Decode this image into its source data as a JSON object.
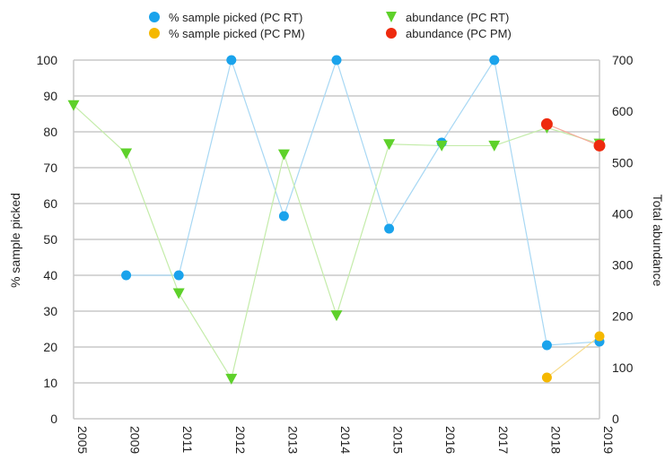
{
  "chart_data": {
    "type": "line",
    "categories": [
      "2005",
      "2009",
      "2011",
      "2012",
      "2013",
      "2014",
      "2015",
      "2016",
      "2017",
      "2018",
      "2019"
    ],
    "y_left": {
      "label": "% sample picked",
      "ylim": [
        0,
        100
      ],
      "ticks": [
        "0",
        "10",
        "20",
        "30",
        "40",
        "50",
        "60",
        "70",
        "80",
        "90",
        "100"
      ]
    },
    "y_right": {
      "label": "Total abundance",
      "ylim": [
        0,
        700
      ],
      "ticks": [
        "0",
        "100",
        "200",
        "300",
        "400",
        "500",
        "600",
        "700"
      ]
    },
    "grid": true,
    "legend_position": "top",
    "series": [
      {
        "name": "% sample picked (PC RT)",
        "axis": "left",
        "marker": "circle",
        "color": "#1aa3ec",
        "line_color": "#a8d8f4",
        "values": [
          null,
          40,
          40,
          100,
          56.5,
          100,
          53,
          77,
          100,
          20.5,
          21.5
        ]
      },
      {
        "name": "% sample picked (PC PM)",
        "axis": "left",
        "marker": "circle",
        "color": "#f5b800",
        "line_color": "#f7dc8c",
        "values": [
          null,
          null,
          null,
          null,
          null,
          null,
          null,
          null,
          null,
          11.5,
          23
        ]
      },
      {
        "name": "abundance (PC RT)",
        "axis": "right",
        "marker": "triangle",
        "color": "#5ed12a",
        "line_color": "#c4ecaa",
        "values": [
          612,
          518,
          245,
          78,
          516,
          202,
          536,
          533,
          533,
          568,
          537
        ]
      },
      {
        "name": "abundance (PC PM)",
        "axis": "right",
        "marker": "circle",
        "color": "#ee2a0e",
        "line_color": "#f6a99a",
        "values": [
          null,
          null,
          null,
          null,
          null,
          null,
          null,
          null,
          null,
          575,
          533
        ]
      }
    ]
  }
}
